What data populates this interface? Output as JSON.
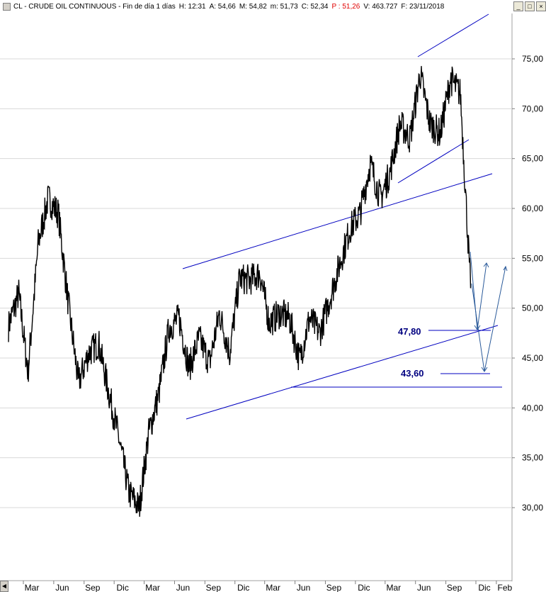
{
  "header": {
    "symbol": "CL - CRUDE OIL CONTINUOUS - Fin de día 1 días",
    "time": "H: 12:31",
    "open": "A: 54,66",
    "high": "M: 54,82",
    "low": "m: 51,73",
    "close": "C: 52,34",
    "prev": "P : 51,26",
    "volume": "V: 463.727",
    "date": "F: 23/11/2018"
  },
  "colors": {
    "price": "#000000",
    "trendline": "#0000c0",
    "projection": "#2a5a9a",
    "label": "#000080",
    "grid": "#d8d8d8",
    "prev_red": "#e00000"
  },
  "icons": [
    "collapse-icon",
    "minimize-icon",
    "restore-icon",
    "close-icon",
    "scroll-left-icon"
  ],
  "chart_data": {
    "type": "line",
    "title": "CL - CRUDE OIL CONTINUOUS - Fin de día 1 días",
    "ylim": [
      25.5,
      80.0
    ],
    "yticks": [
      "75,00",
      "70,00",
      "65,00",
      "60,00",
      "55,00",
      "50,00",
      "45,00",
      "40,00",
      "35,00",
      "30,00"
    ],
    "xticks": [
      "Mar",
      "Jun",
      "Sep",
      "Dic",
      "Mar",
      "Jun",
      "Sep",
      "Dic",
      "Mar",
      "Jun",
      "Sep",
      "Dic",
      "Mar",
      "Jun",
      "Sep",
      "Dic",
      "Feb"
    ],
    "x": [
      "2015-01",
      "2015-02",
      "2015-03",
      "2015-04",
      "2015-05",
      "2015-06",
      "2015-07",
      "2015-08",
      "2015-09",
      "2015-10",
      "2015-11",
      "2015-12",
      "2016-01",
      "2016-02",
      "2016-03",
      "2016-04",
      "2016-05",
      "2016-06",
      "2016-07",
      "2016-08",
      "2016-09",
      "2016-10",
      "2016-11",
      "2016-12",
      "2017-01",
      "2017-02",
      "2017-03",
      "2017-04",
      "2017-05",
      "2017-06",
      "2017-07",
      "2017-08",
      "2017-09",
      "2017-10",
      "2017-11",
      "2017-12",
      "2018-01",
      "2018-02",
      "2018-03",
      "2018-04",
      "2018-05",
      "2018-06",
      "2018-07",
      "2018-08",
      "2018-09",
      "2018-10",
      "2018-11"
    ],
    "series": [
      {
        "values": [
          48.2,
          51.5,
          43.5,
          56.5,
          61.0,
          59.5,
          50.5,
          42.5,
          45.5,
          46.5,
          41.5,
          37.0,
          31.5,
          30.0,
          37.5,
          41.5,
          48.0,
          49.0,
          44.0,
          47.0,
          44.5,
          49.5,
          45.5,
          53.0,
          52.8,
          53.5,
          48.5,
          49.5,
          49.0,
          44.8,
          49.0,
          47.5,
          51.0,
          54.5,
          58.0,
          59.5,
          64.5,
          61.0,
          63.5,
          68.5,
          67.0,
          73.5,
          68.5,
          67.5,
          73.0,
          71.5,
          52.0
        ]
      }
    ],
    "annotations": [
      "47,80",
      "43,60"
    ]
  }
}
